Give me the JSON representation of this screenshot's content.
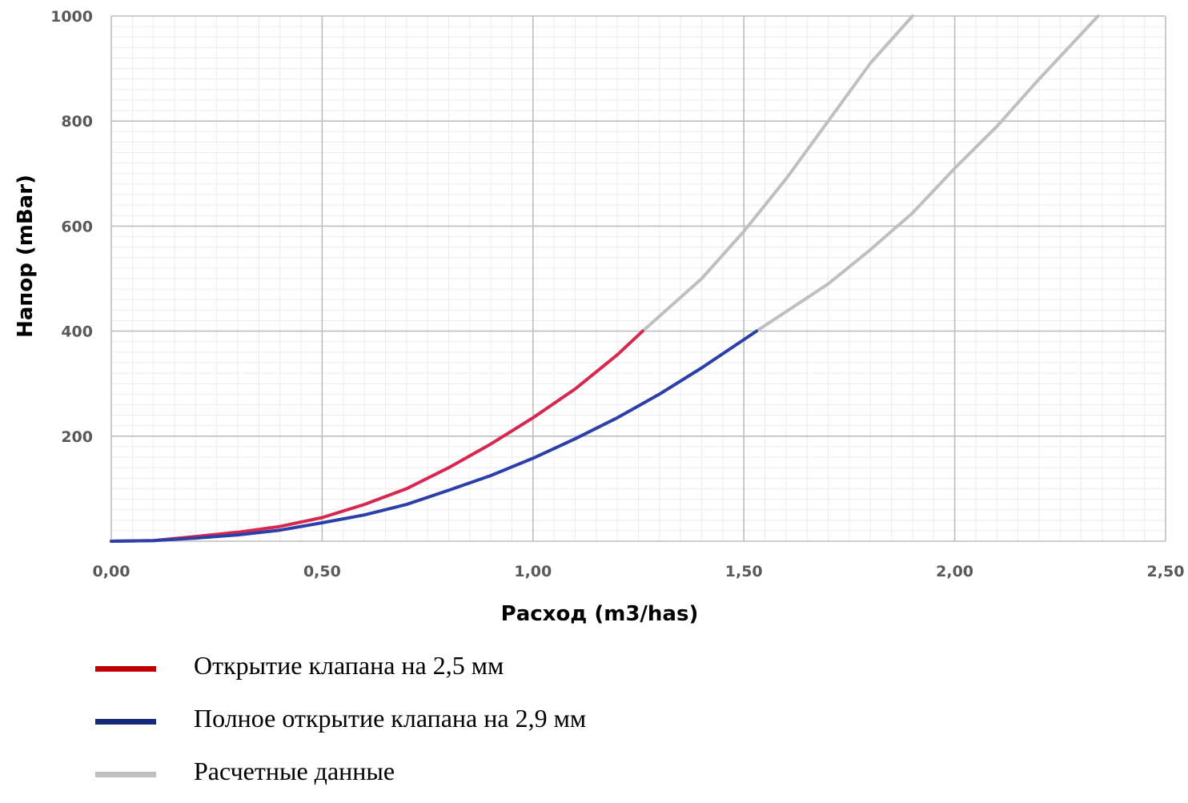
{
  "chart_data": {
    "type": "line",
    "xlabel": "Расход (m3/has)",
    "ylabel": "Напор (mBar)",
    "xlim": [
      0,
      2.5
    ],
    "ylim": [
      0,
      1000
    ],
    "x_ticks": [
      "0,00",
      "0,50",
      "1,00",
      "1,50",
      "2,00",
      "2,50"
    ],
    "y_ticks": [
      "200",
      "400",
      "600",
      "800",
      "1000"
    ],
    "grid": true,
    "legend_position": "bottom",
    "series": [
      {
        "name": "Открытие клапана на 2,5 мм",
        "color": "#d6274f",
        "legend_color": "#c00000",
        "x": [
          0,
          0.1,
          0.2,
          0.3,
          0.4,
          0.5,
          0.6,
          0.7,
          0.8,
          0.9,
          1.0,
          1.1,
          1.2,
          1.26
        ],
        "y": [
          0,
          1,
          9,
          17,
          28,
          45,
          70,
          100,
          140,
          185,
          235,
          290,
          355,
          400
        ]
      },
      {
        "name": "Полное открытие клапана на 2,9 мм",
        "color": "#2c3ea8",
        "legend_color": "#14287a",
        "x": [
          0,
          0.1,
          0.2,
          0.3,
          0.4,
          0.5,
          0.6,
          0.7,
          0.8,
          0.9,
          1.0,
          1.1,
          1.2,
          1.3,
          1.4,
          1.53
        ],
        "y": [
          0,
          1,
          6,
          12,
          21,
          35,
          50,
          70,
          97,
          125,
          158,
          195,
          235,
          280,
          330,
          400
        ]
      },
      {
        "name": "Расчетные данные",
        "color": "#bfbfbf",
        "legend_color": "#bfbfbf",
        "x": [
          1.26,
          1.4,
          1.5,
          1.6,
          1.7,
          1.8,
          1.9
        ],
        "y": [
          400,
          500,
          590,
          690,
          800,
          910,
          1000
        ]
      },
      {
        "name": "",
        "color": "#bfbfbf",
        "x": [
          1.53,
          1.7,
          1.8,
          1.9,
          2.0,
          2.1,
          2.2,
          2.34
        ],
        "y": [
          400,
          490,
          555,
          625,
          710,
          790,
          880,
          1000
        ]
      }
    ],
    "legend_entries": [
      0,
      1,
      2
    ]
  }
}
